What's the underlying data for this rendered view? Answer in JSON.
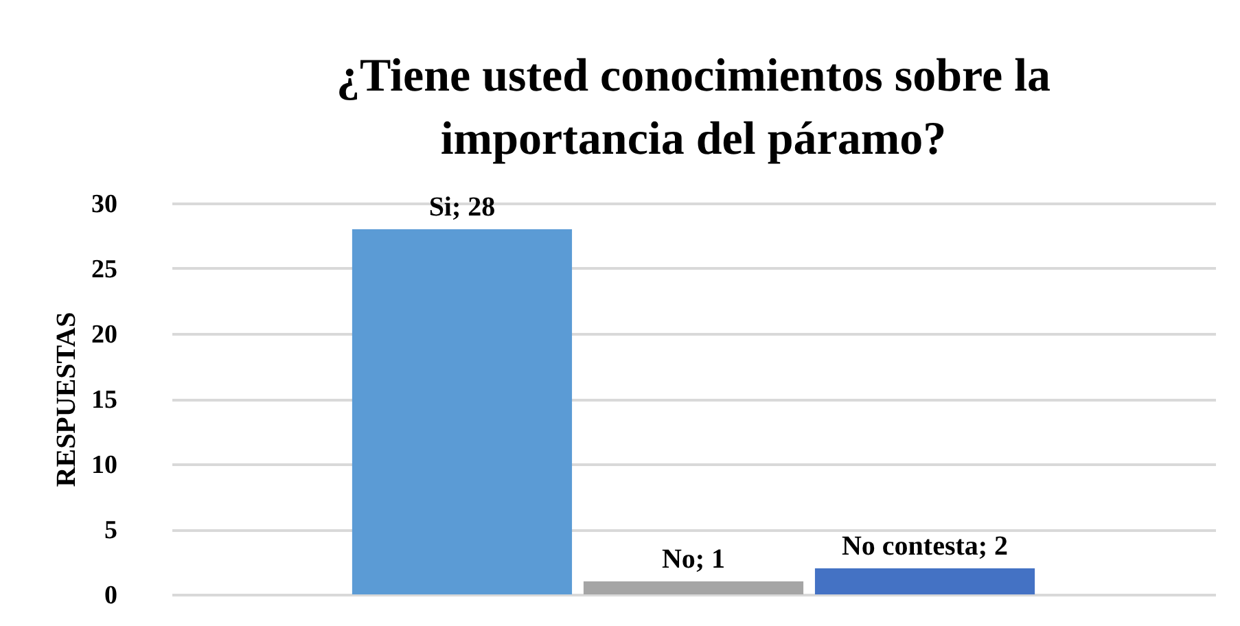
{
  "chart_data": {
    "type": "bar",
    "title": "¿Tiene usted conocimientos sobre la importancia del páramo?",
    "ylabel": "RESPUESTAS",
    "categories": [
      null,
      null,
      null
    ],
    "values": [
      28,
      1,
      2
    ],
    "colors": [
      "#5b9bd5",
      "#a5a5a5",
      "#4472c4"
    ],
    "value_labels": [
      "Si; 28",
      "No; 1",
      "No contesta; 2"
    ],
    "ylim": [
      0,
      30
    ],
    "yticks": [
      0,
      5,
      10,
      15,
      20,
      25,
      30
    ],
    "grid": "y",
    "tick_labels": "y"
  }
}
